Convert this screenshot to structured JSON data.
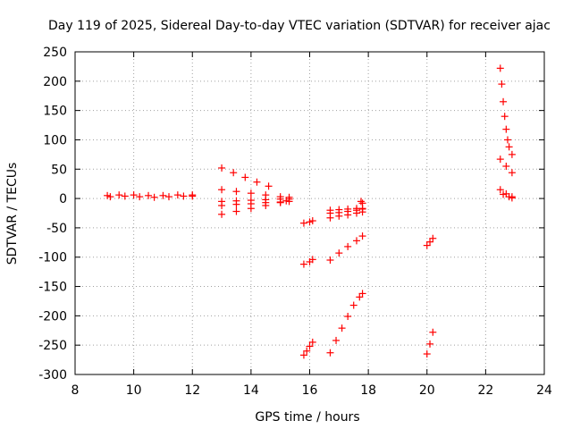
{
  "chart_data": {
    "type": "scatter",
    "title": "Day 119 of 2025, Sidereal Day-to-day VTEC variation (SDTVAR) for receiver ajac",
    "xlabel": "GPS time / hours",
    "ylabel": "SDTVAR / TECUs",
    "xlim": [
      8,
      24
    ],
    "ylim": [
      -300,
      250
    ],
    "xticks": [
      "8",
      "10",
      "12",
      "14",
      "16",
      "18",
      "20",
      "22",
      "24"
    ],
    "yticks": [
      "250",
      "200",
      "150",
      "100",
      "50",
      "0",
      "-50",
      "-100",
      "-150",
      "-200",
      "-250",
      "-300"
    ],
    "grid": true,
    "marker": "+",
    "color": "#ff0000",
    "series": [
      {
        "x": [
          9.1,
          9.5,
          10.0,
          10.5,
          11.0,
          11.5,
          12.0
        ],
        "y": [
          5,
          6,
          6,
          5,
          5,
          6,
          6
        ]
      },
      {
        "x": [
          9.2,
          9.7,
          10.2,
          10.7,
          11.2,
          11.7,
          12.0
        ],
        "y": [
          3,
          4,
          3,
          2,
          3,
          4,
          4
        ]
      },
      {
        "x": [
          13.0,
          13.4,
          13.8,
          14.2,
          14.6
        ],
        "y": [
          52,
          44,
          36,
          28,
          21
        ]
      },
      {
        "x": [
          13.0,
          13.5,
          14.0,
          14.5,
          15.0,
          15.3
        ],
        "y": [
          15,
          12,
          9,
          6,
          3,
          2
        ]
      },
      {
        "x": [
          13.0,
          13.5,
          14.0,
          14.5,
          15.0,
          15.3
        ],
        "y": [
          -5,
          -4,
          -3,
          -2,
          -1,
          -1
        ]
      },
      {
        "x": [
          13.0,
          13.5,
          14.0,
          14.5,
          15.0,
          15.3
        ],
        "y": [
          -12,
          -10,
          -9,
          -7,
          -6,
          -5
        ]
      },
      {
        "x": [
          13.0,
          13.5,
          14.0,
          14.5,
          15.0,
          15.2
        ],
        "y": [
          -27,
          -22,
          -17,
          -12,
          -7,
          -4
        ]
      },
      {
        "x": [
          15.8,
          16.0,
          16.1
        ],
        "y": [
          -42,
          -40,
          -38
        ]
      },
      {
        "x": [
          15.8,
          16.0,
          16.1
        ],
        "y": [
          -112,
          -108,
          -104
        ]
      },
      {
        "x": [
          15.8,
          15.9,
          16.0,
          16.1
        ],
        "y": [
          -267,
          -260,
          -252,
          -245
        ]
      },
      {
        "x": [
          16.7,
          17.0,
          17.3,
          17.6,
          17.8
        ],
        "y": [
          -20,
          -19,
          -18,
          -17,
          -17
        ]
      },
      {
        "x": [
          16.7,
          17.0,
          17.3,
          17.6,
          17.8
        ],
        "y": [
          -25,
          -24,
          -22,
          -20,
          -18
        ]
      },
      {
        "x": [
          16.7,
          17.0,
          17.3,
          17.6,
          17.8
        ],
        "y": [
          -33,
          -30,
          -28,
          -25,
          -23
        ]
      },
      {
        "x": [
          17.75,
          17.8
        ],
        "y": [
          -5,
          -8
        ]
      },
      {
        "x": [
          16.7,
          17.0,
          17.3,
          17.6,
          17.8
        ],
        "y": [
          -105,
          -93,
          -82,
          -72,
          -64
        ]
      },
      {
        "x": [
          16.7,
          16.9,
          17.1,
          17.3,
          17.5,
          17.7,
          17.8
        ],
        "y": [
          -263,
          -242,
          -221,
          -201,
          -182,
          -168,
          -162
        ]
      },
      {
        "x": [
          20.0,
          20.1,
          20.2
        ],
        "y": [
          -80,
          -74,
          -68
        ]
      },
      {
        "x": [
          20.0,
          20.1,
          20.2
        ],
        "y": [
          -265,
          -248,
          -228
        ]
      },
      {
        "x": [
          22.5,
          22.55,
          22.6,
          22.65,
          22.7,
          22.75,
          22.8,
          22.9
        ],
        "y": [
          222,
          195,
          165,
          140,
          118,
          100,
          88,
          75
        ]
      },
      {
        "x": [
          22.5,
          22.7,
          22.9
        ],
        "y": [
          67,
          55,
          44
        ]
      },
      {
        "x": [
          22.5,
          22.7,
          22.9
        ],
        "y": [
          15,
          8,
          3
        ]
      },
      {
        "x": [
          22.6,
          22.8,
          22.9
        ],
        "y": [
          7,
          3,
          1
        ]
      }
    ]
  }
}
